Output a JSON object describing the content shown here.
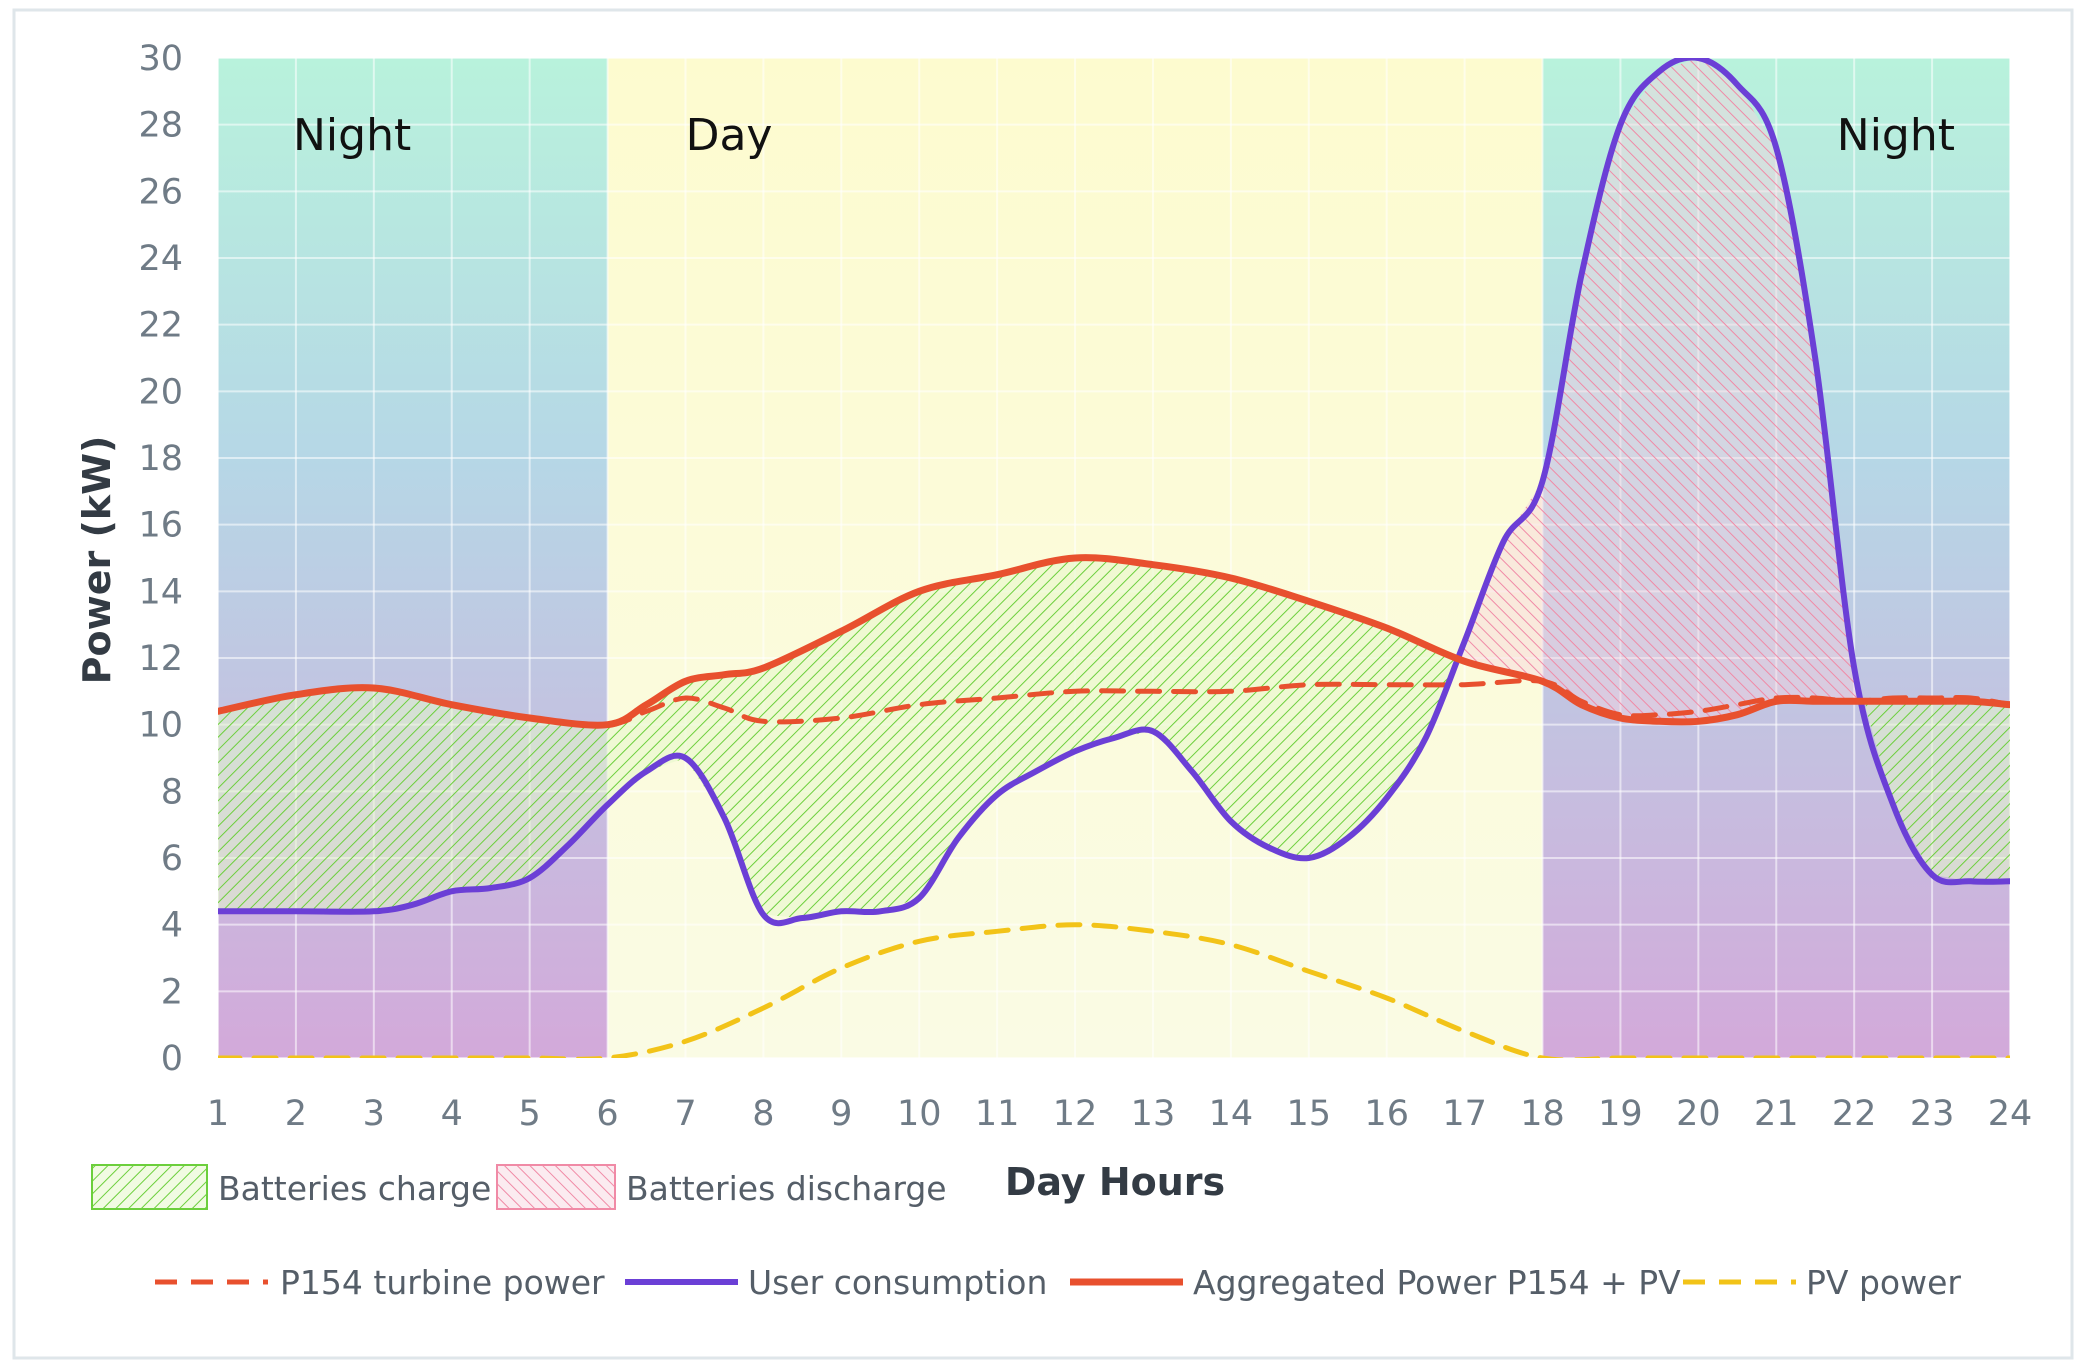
{
  "chart_data": {
    "type": "line",
    "title": "",
    "xlabel": "Day Hours",
    "ylabel": "Power (kW)",
    "xlim": [
      1,
      24
    ],
    "ylim": [
      0,
      30
    ],
    "x_ticks": [
      1,
      2,
      3,
      4,
      5,
      6,
      7,
      8,
      9,
      10,
      11,
      12,
      13,
      14,
      15,
      16,
      17,
      18,
      19,
      20,
      21,
      22,
      23,
      24
    ],
    "y_ticks": [
      0,
      2,
      4,
      6,
      8,
      10,
      12,
      14,
      16,
      18,
      20,
      22,
      24,
      26,
      28,
      30
    ],
    "grid": true,
    "periods": [
      {
        "label": "Night",
        "from": 1,
        "to": 6,
        "color": "night"
      },
      {
        "label": "Day",
        "from": 6,
        "to": 18,
        "color": "day"
      },
      {
        "label": "Night",
        "from": 18,
        "to": 24,
        "color": "night"
      }
    ],
    "series": [
      {
        "name": "P154 turbine power",
        "style": "dashed",
        "color": "#e8502e",
        "x": [
          1,
          2,
          3,
          4,
          5,
          6,
          6.5,
          7,
          7.5,
          8,
          9,
          10,
          11,
          12,
          13,
          14,
          15,
          16,
          17,
          18,
          18.5,
          19,
          19.5,
          20,
          20.5,
          21,
          21.5,
          22,
          22.5,
          23,
          23.5,
          24
        ],
        "y": [
          10.4,
          10.9,
          11.1,
          10.6,
          10.2,
          10.0,
          10.4,
          10.8,
          10.5,
          10.1,
          10.2,
          10.6,
          10.8,
          11.0,
          11.0,
          11.0,
          11.2,
          11.2,
          11.2,
          11.3,
          10.7,
          10.3,
          10.3,
          10.4,
          10.6,
          10.8,
          10.8,
          10.7,
          10.8,
          10.8,
          10.8,
          10.6
        ]
      },
      {
        "name": "User consumption",
        "style": "solid",
        "color": "#6b3fd6",
        "x": [
          1,
          2,
          3,
          3.5,
          4,
          4.5,
          5,
          5.5,
          6,
          6.5,
          7,
          7.5,
          8,
          8.5,
          9,
          9.5,
          10,
          10.5,
          11,
          11.5,
          12,
          12.5,
          13,
          13.5,
          14,
          14.5,
          15,
          15.5,
          16,
          16.5,
          17,
          17.5,
          18,
          18.5,
          19,
          19.5,
          20,
          20.5,
          21,
          21.5,
          22,
          22.5,
          23,
          23.5,
          24
        ],
        "y": [
          4.4,
          4.4,
          4.4,
          4.6,
          5.0,
          5.1,
          5.4,
          6.4,
          7.6,
          8.6,
          9.0,
          7.2,
          4.3,
          4.2,
          4.4,
          4.4,
          4.8,
          6.6,
          7.9,
          8.6,
          9.2,
          9.6,
          9.8,
          8.6,
          7.1,
          6.3,
          6.0,
          6.6,
          7.8,
          9.6,
          12.5,
          15.5,
          17.3,
          23.5,
          28.0,
          29.6,
          30.0,
          29.2,
          27.3,
          21.0,
          11.7,
          7.6,
          5.5,
          5.3,
          5.3
        ]
      },
      {
        "name": "Aggregated Power P154 + PV",
        "style": "solid",
        "color": "#e8502e",
        "x": [
          1,
          2,
          3,
          4,
          5,
          6,
          6.5,
          7,
          7.5,
          8,
          9,
          10,
          11,
          12,
          13,
          14,
          15,
          16,
          17,
          18,
          18.5,
          19,
          19.5,
          20,
          20.5,
          21,
          21.5,
          22,
          22.5,
          23,
          23.5,
          24
        ],
        "y": [
          10.4,
          10.9,
          11.1,
          10.6,
          10.2,
          10.0,
          10.6,
          11.3,
          11.5,
          11.7,
          12.8,
          14.0,
          14.5,
          15.0,
          14.8,
          14.4,
          13.7,
          12.9,
          11.9,
          11.3,
          10.6,
          10.2,
          10.1,
          10.1,
          10.3,
          10.7,
          10.7,
          10.7,
          10.7,
          10.7,
          10.7,
          10.6
        ]
      },
      {
        "name": "PV power",
        "style": "dashed",
        "color": "#f2c318",
        "x": [
          1,
          2,
          3,
          4,
          5,
          6,
          7,
          8,
          9,
          10,
          11,
          12,
          13,
          14,
          15,
          16,
          17,
          18,
          19,
          20,
          21,
          22,
          23,
          24
        ],
        "y": [
          0,
          0,
          0,
          0,
          0,
          0,
          0.5,
          1.5,
          2.7,
          3.5,
          3.8,
          4.0,
          3.8,
          3.4,
          2.6,
          1.8,
          0.8,
          0,
          0,
          0,
          0,
          0,
          0,
          0
        ]
      }
    ],
    "area_legend": [
      {
        "name": "Batteries charge",
        "color": "#6ccf3c"
      },
      {
        "name": "Batteries discharge",
        "color": "#f28aa8"
      }
    ]
  }
}
